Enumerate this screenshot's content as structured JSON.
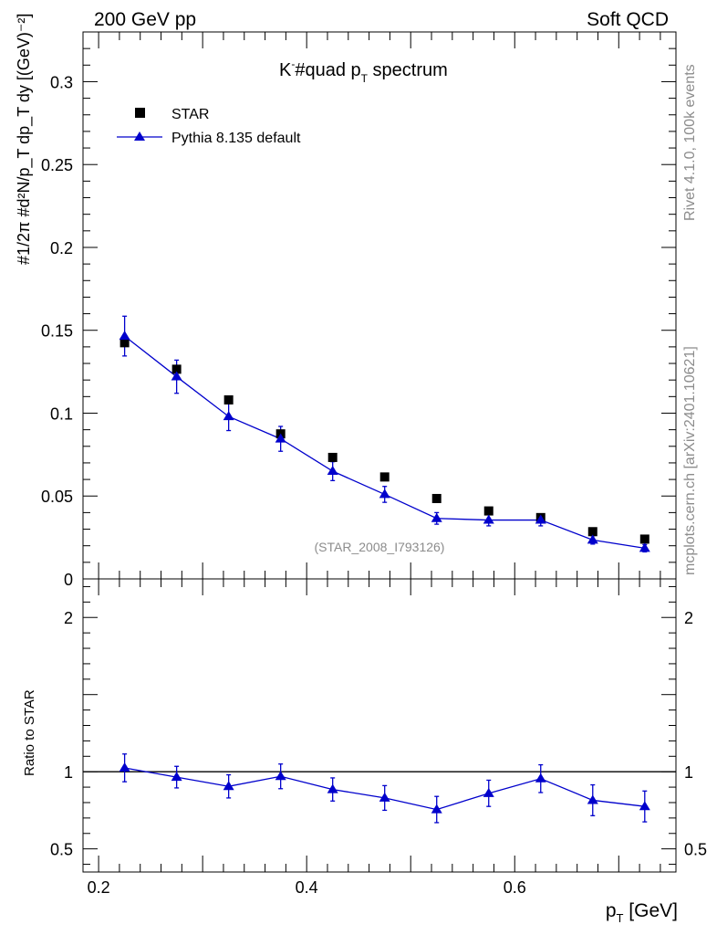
{
  "header": {
    "left": "200 GeV pp",
    "right": "Soft QCD"
  },
  "side_labels": {
    "rivet": "Rivet 4.1.0,  100k events",
    "mcplots": "mcplots.cern.ch [arXiv:2401.10621]"
  },
  "colors": {
    "data": "#000000",
    "mc": "#0000cc",
    "ref_line": "#000000"
  },
  "chart_data": [
    {
      "type": "scatter",
      "title": "K⁻#quad p_T spectrum",
      "title_main": "K",
      "title_sup": "-",
      "title_mid": "#quad p",
      "title_sub": "T",
      "title_end": " spectrum",
      "ylabel": "#1/2π #d²N/p_T dp_T dy [(GeV)⁻²]",
      "xlabel": "p_T [GeV]",
      "xlim": [
        0.185,
        0.755
      ],
      "ylim": [
        0,
        0.33
      ],
      "yticks": [
        0.05,
        0.1,
        0.15,
        0.2,
        0.25,
        0.3
      ],
      "ytick_labels": [
        "0.05",
        "0.1",
        "0.15",
        "0.2",
        "0.25",
        "0.3"
      ],
      "y_zero_label": "0",
      "annotation": "(STAR_2008_I793126)",
      "legend": {
        "placement": "top-left",
        "entries": [
          "STAR",
          "Pythia 8.135 default"
        ]
      },
      "series": [
        {
          "name": "STAR",
          "marker": "square",
          "x": [
            0.225,
            0.275,
            0.325,
            0.375,
            0.425,
            0.475,
            0.525,
            0.575,
            0.625,
            0.675,
            0.725
          ],
          "y": [
            0.1425,
            0.1265,
            0.108,
            0.0875,
            0.0733,
            0.0615,
            0.0485,
            0.041,
            0.037,
            0.0285,
            0.024
          ]
        },
        {
          "name": "Pythia 8.135 default",
          "marker": "triangle",
          "x": [
            0.225,
            0.275,
            0.325,
            0.375,
            0.425,
            0.475,
            0.525,
            0.575,
            0.625,
            0.675,
            0.725
          ],
          "y": [
            0.1465,
            0.122,
            0.098,
            0.0845,
            0.065,
            0.051,
            0.0365,
            0.0355,
            0.0355,
            0.0235,
            0.0185
          ],
          "yerr": [
            0.012,
            0.01,
            0.0085,
            0.0075,
            0.0057,
            0.0048,
            0.0035,
            0.0035,
            0.0035,
            0.0025,
            0.0022
          ]
        }
      ]
    },
    {
      "type": "scatter",
      "title": "",
      "ylabel": "Ratio to STAR",
      "xlabel": "p_T [GeV]",
      "xlim": [
        0.185,
        0.755
      ],
      "ylim": [
        0.35,
        2.25
      ],
      "yticks": [
        0.5,
        1,
        2
      ],
      "ytick_labels": [
        "0.5",
        "1",
        "2"
      ],
      "xticks": [
        0.2,
        0.4,
        0.6
      ],
      "xtick_labels": [
        "0.2",
        "0.4",
        "0.6"
      ],
      "reference_line": 1,
      "series": [
        {
          "name": "Pythia 8.135 default",
          "marker": "triangle",
          "x": [
            0.225,
            0.275,
            0.325,
            0.375,
            0.425,
            0.475,
            0.525,
            0.575,
            0.625,
            0.675,
            0.725
          ],
          "y": [
            1.025,
            0.965,
            0.905,
            0.97,
            0.885,
            0.83,
            0.755,
            0.86,
            0.955,
            0.815,
            0.775
          ],
          "yerr": [
            0.09,
            0.07,
            0.075,
            0.08,
            0.075,
            0.08,
            0.085,
            0.085,
            0.09,
            0.1,
            0.1
          ]
        }
      ]
    }
  ]
}
